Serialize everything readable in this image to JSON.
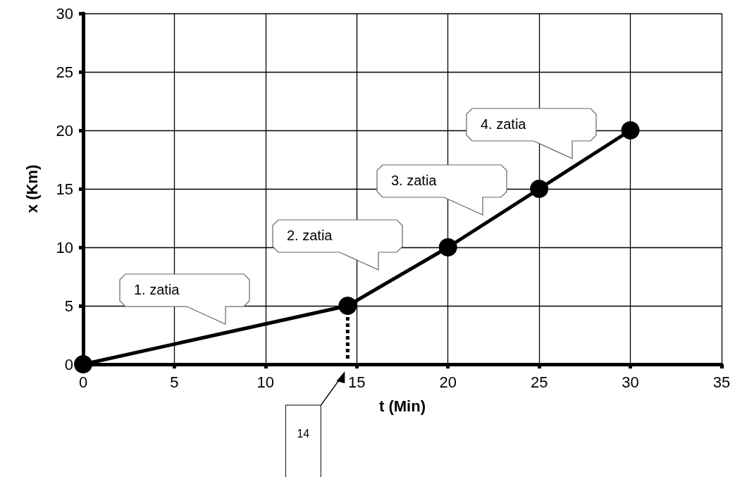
{
  "chart_data": {
    "type": "line",
    "xlabel": "t (Min)",
    "ylabel": "x (Km)",
    "x": [
      0,
      14.5,
      20,
      25,
      30
    ],
    "series": [
      {
        "color": "#000000",
        "values": [
          0,
          5,
          10,
          15,
          20
        ]
      }
    ],
    "xlim": [
      0,
      35
    ],
    "xticks": [
      0,
      5,
      10,
      15,
      20,
      25,
      30,
      35
    ],
    "ylim": [
      0,
      30
    ],
    "yticks": [
      0,
      5,
      10,
      15,
      20,
      25,
      30
    ],
    "grid": true,
    "marker": "circle",
    "line_style": "solid",
    "ref_lines": [
      {
        "axis": "x",
        "value": 14.5,
        "label": "14",
        "line_style": "dotted",
        "color": "#000000"
      }
    ],
    "annotations": [
      "1. zatia",
      "2. zatia",
      "3. zatia",
      "4. zatia"
    ]
  }
}
